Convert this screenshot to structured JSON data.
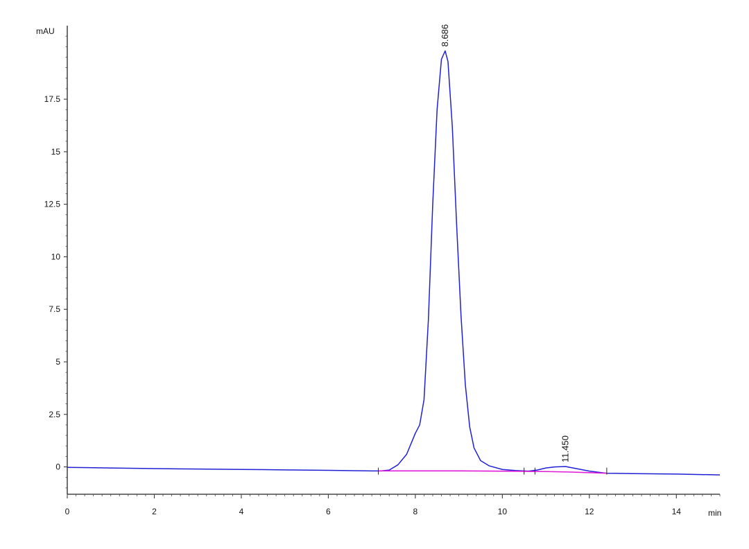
{
  "chart_data": {
    "type": "line",
    "title": "",
    "xlabel": "min",
    "ylabel": "mAU",
    "xlim": [
      0,
      15
    ],
    "ylim": [
      -1.3,
      21
    ],
    "x_ticks": [
      0,
      2,
      4,
      6,
      8,
      10,
      12,
      14
    ],
    "x_tick_labels": [
      "0",
      "2",
      "4",
      "6",
      "8",
      "10",
      "12",
      "14"
    ],
    "y_ticks": [
      0,
      2.5,
      5,
      7.5,
      10,
      12.5,
      15,
      17.5
    ],
    "y_tick_labels": [
      "0",
      "2.5",
      "5",
      "7.5",
      "10",
      "12.5",
      "15",
      "17.5"
    ],
    "grid": false,
    "series": [
      {
        "color": "#1f1fd6",
        "x": [
          0,
          1,
          2,
          3,
          4,
          5,
          6,
          7,
          7.2,
          7.4,
          7.6,
          7.8,
          8.0,
          8.1,
          8.2,
          8.3,
          8.4,
          8.5,
          8.6,
          8.686,
          8.75,
          8.85,
          8.95,
          9.05,
          9.15,
          9.25,
          9.35,
          9.5,
          9.7,
          10.0,
          10.3,
          10.6,
          10.8,
          11.0,
          11.2,
          11.45,
          11.7,
          12.0,
          12.4,
          13.0,
          14.0,
          15.0
        ],
        "y": [
          -0.02,
          -0.05,
          -0.08,
          -0.1,
          -0.12,
          -0.14,
          -0.16,
          -0.19,
          -0.19,
          -0.15,
          0.1,
          0.6,
          1.6,
          2.0,
          3.2,
          7.0,
          12.5,
          17.0,
          19.4,
          19.8,
          19.3,
          16.2,
          11.5,
          7.2,
          3.9,
          1.9,
          0.9,
          0.3,
          0.05,
          -0.12,
          -0.17,
          -0.2,
          -0.15,
          -0.05,
          0.0,
          0.02,
          -0.08,
          -0.2,
          -0.3,
          -0.32,
          -0.34,
          -0.38
        ]
      },
      {
        "color": "#e01ad8",
        "x": [
          7.15,
          9.0,
          10.0,
          10.5,
          11.0,
          11.5,
          12.0,
          12.4
        ],
        "y": [
          -0.19,
          -0.19,
          -0.2,
          -0.21,
          -0.22,
          -0.24,
          -0.27,
          -0.3
        ]
      }
    ],
    "peaks": [
      {
        "x": 8.686,
        "y": 19.8,
        "label": "8.686"
      },
      {
        "x": 11.45,
        "y": 0.02,
        "label": "11.450"
      }
    ],
    "integration_marks": [
      7.15,
      10.5,
      10.75,
      12.4
    ]
  }
}
